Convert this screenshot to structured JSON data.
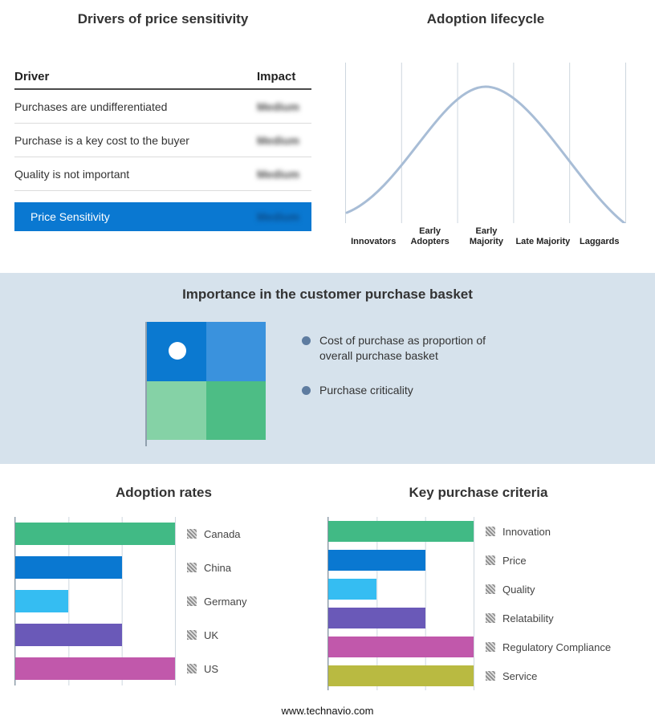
{
  "page": {
    "footer_url": "www.technavio.com"
  },
  "drivers_table": {
    "title": "Drivers of price sensitivity",
    "header": {
      "driver": "Driver",
      "impact": "Impact"
    },
    "rows": [
      {
        "driver": "Purchases are undifferentiated",
        "impact": "Medium"
      },
      {
        "driver": "Purchase is a key cost to the buyer",
        "impact": "Medium"
      },
      {
        "driver": "Quality is not important",
        "impact": "Medium"
      }
    ],
    "summary_row": {
      "label": "Price Sensitivity",
      "impact": "Medium",
      "bar_color": "#0a78d1"
    }
  },
  "adoption_lifecycle": {
    "title": "Adoption lifecycle",
    "stages": [
      "Innovators",
      "Early Adopters",
      "Early Majority",
      "Late Majority",
      "Laggards"
    ],
    "curve_color": "#a8bdd6"
  },
  "purchase_basket": {
    "title": "Importance in the customer purchase basket",
    "bullets": [
      "Cost of purchase as proportion of overall purchase basket",
      "Purchase criticality"
    ],
    "quadrant": {
      "top_left": "#0b79d0",
      "top_right": "#3a92dd",
      "bottom_left": "#85d2a6",
      "bottom_right": "#4dbd85"
    }
  },
  "chart_data": [
    {
      "type": "line",
      "title": "Adoption lifecycle",
      "categories": [
        "Innovators",
        "Early Adopters",
        "Early Majority",
        "Late Majority",
        "Laggards"
      ],
      "description": "Bell-shaped adoption curve rising from Innovators, peaking over Early Majority, declining through Laggards",
      "grid": true,
      "legend": false
    },
    {
      "type": "bar",
      "title": "Adoption rates",
      "orientation": "horizontal",
      "categories": [
        "Canada",
        "China",
        "Germany",
        "UK",
        "US"
      ],
      "values": [
        3,
        2,
        1,
        2,
        3
      ],
      "xmax": 3,
      "colors": [
        "#41ba85",
        "#0a78d1",
        "#35bdf2",
        "#6a59b8",
        "#c158ab"
      ],
      "grid": true,
      "legend_position": "right",
      "note": "values in relative grid units, axis unlabeled"
    },
    {
      "type": "bar",
      "title": "Key purchase criteria",
      "orientation": "horizontal",
      "categories": [
        "Innovation",
        "Price",
        "Quality",
        "Relatability",
        "Regulatory Compliance",
        "Service"
      ],
      "values": [
        3,
        2,
        1,
        2,
        3,
        3
      ],
      "xmax": 3,
      "colors": [
        "#41ba85",
        "#0a78d1",
        "#35bdf2",
        "#6a59b8",
        "#c158ab",
        "#b9ba41"
      ],
      "grid": true,
      "legend_position": "right",
      "note": "values in relative grid units, axis unlabeled"
    }
  ]
}
